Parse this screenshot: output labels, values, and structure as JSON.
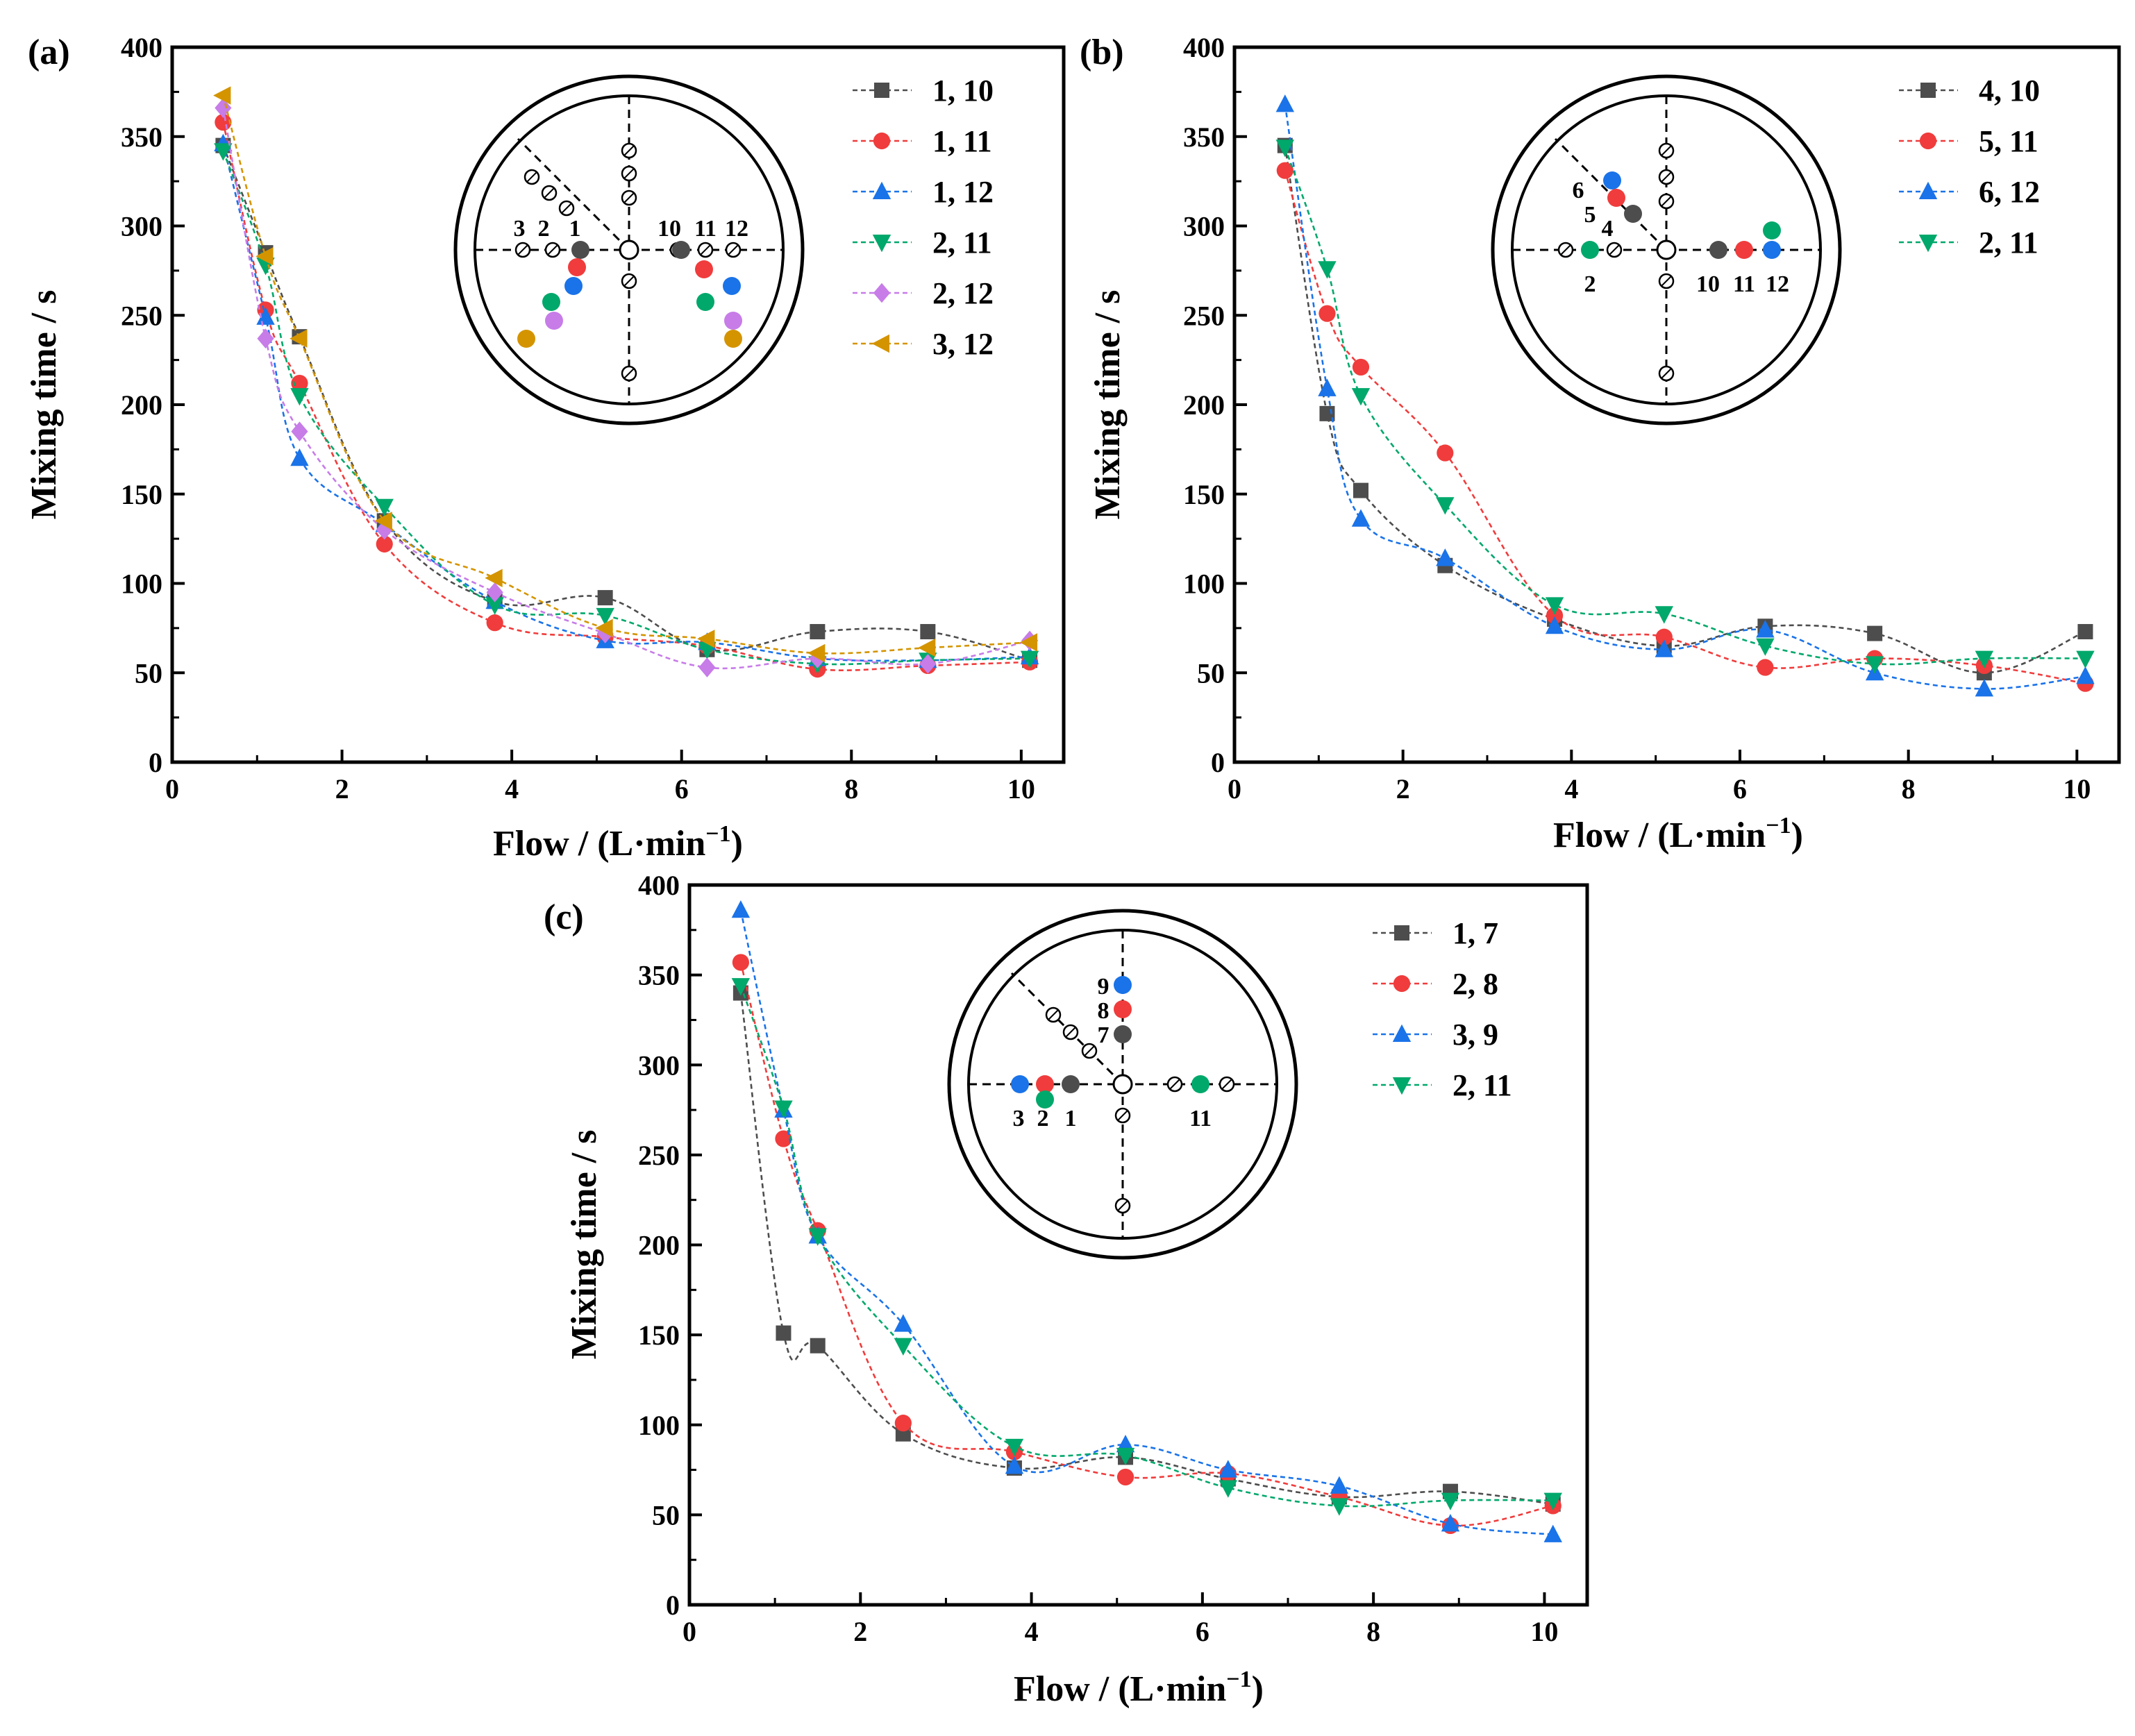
{
  "colors": {
    "black": "#4d4d4d",
    "red": "#f03c3c",
    "blue": "#1a73e8",
    "green": "#00a86b",
    "purple": "#c77ce8",
    "orange": "#d49400"
  },
  "chart_data": [
    {
      "id": "a",
      "type": "line",
      "panel_label": "(a)",
      "xlabel": "Flow / (L·min",
      "xlabel_sup": "−1",
      "xlabel_close": ")",
      "ylabel": "Mixing time / s",
      "xlim": [
        0,
        10.5
      ],
      "ylim": [
        0,
        400
      ],
      "xticks": [
        0,
        2,
        4,
        6,
        8,
        10
      ],
      "yticks": [
        0,
        50,
        100,
        150,
        200,
        250,
        300,
        350,
        400
      ],
      "x": [
        0.6,
        1.1,
        1.5,
        2.5,
        3.8,
        5.1,
        6.3,
        7.6,
        8.9,
        10.1
      ],
      "series": [
        {
          "name": "1, 10",
          "color": "black",
          "marker": "square",
          "values": [
            345,
            285,
            238,
            135,
            90,
            92,
            63,
            73,
            73,
            57
          ]
        },
        {
          "name": "1, 11",
          "color": "red",
          "marker": "circle",
          "values": [
            358,
            253,
            212,
            122,
            78,
            70,
            65,
            52,
            54,
            56
          ]
        },
        {
          "name": "1, 12",
          "color": "blue",
          "marker": "triangle-up",
          "values": [
            346,
            249,
            170,
            133,
            90,
            68,
            67,
            58,
            57,
            59
          ]
        },
        {
          "name": "2, 11",
          "color": "green",
          "marker": "triangle-down",
          "values": [
            342,
            278,
            205,
            143,
            88,
            82,
            63,
            55,
            57,
            58
          ]
        },
        {
          "name": "2, 12",
          "color": "purple",
          "marker": "diamond",
          "values": [
            366,
            237,
            185,
            130,
            95,
            72,
            53,
            58,
            55,
            68
          ]
        },
        {
          "name": "3, 12",
          "color": "orange",
          "marker": "triangle-left",
          "values": [
            373,
            283,
            237,
            135,
            103,
            75,
            69,
            61,
            64,
            67
          ]
        }
      ],
      "legend_position": "top-right",
      "inset": {
        "labels": [
          "3",
          "2",
          "1",
          "10",
          "11",
          "12"
        ]
      }
    },
    {
      "id": "b",
      "type": "line",
      "panel_label": "(b)",
      "xlabel": "Flow / (L·min",
      "xlabel_sup": "−1",
      "xlabel_close": ")",
      "ylabel": "Mixing time / s",
      "xlim": [
        0,
        10.5
      ],
      "ylim": [
        0,
        400
      ],
      "xticks": [
        0,
        2,
        4,
        6,
        8,
        10
      ],
      "yticks": [
        0,
        50,
        100,
        150,
        200,
        250,
        300,
        350,
        400
      ],
      "x": [
        0.6,
        1.1,
        1.5,
        2.5,
        3.8,
        5.1,
        6.3,
        7.6,
        8.9,
        10.1
      ],
      "series": [
        {
          "name": "4, 10",
          "color": "black",
          "marker": "square",
          "values": [
            345,
            195,
            152,
            110,
            80,
            65,
            76,
            72,
            50,
            73
          ]
        },
        {
          "name": "5, 11",
          "color": "red",
          "marker": "circle",
          "values": [
            331,
            251,
            221,
            173,
            82,
            70,
            53,
            58,
            54,
            44
          ]
        },
        {
          "name": "6, 12",
          "color": "blue",
          "marker": "triangle-up",
          "values": [
            368,
            209,
            136,
            114,
            76,
            63,
            74,
            50,
            41,
            48
          ]
        },
        {
          "name": "2, 11",
          "color": "green",
          "marker": "triangle-down",
          "values": [
            344,
            276,
            205,
            144,
            88,
            83,
            65,
            55,
            58,
            58
          ]
        }
      ],
      "legend_position": "top-right",
      "inset": {
        "labels": [
          "6",
          "5",
          "4",
          "2",
          "10",
          "11",
          "12"
        ]
      }
    },
    {
      "id": "c",
      "type": "line",
      "panel_label": "(c)",
      "xlabel": "Flow / (L·min",
      "xlabel_sup": "−1",
      "xlabel_close": ")",
      "ylabel": "Mixing time / s",
      "xlim": [
        0,
        10.5
      ],
      "ylim": [
        0,
        400
      ],
      "xticks": [
        0,
        2,
        4,
        6,
        8,
        10
      ],
      "yticks": [
        0,
        50,
        100,
        150,
        200,
        250,
        300,
        350,
        400
      ],
      "x": [
        0.6,
        1.1,
        1.5,
        2.5,
        3.8,
        5.1,
        6.3,
        7.6,
        8.9,
        10.1
      ],
      "series": [
        {
          "name": "1, 7",
          "color": "black",
          "marker": "square",
          "values": [
            340,
            151,
            144,
            95,
            76,
            82,
            70,
            60,
            63,
            56
          ]
        },
        {
          "name": "2, 8",
          "color": "red",
          "marker": "circle",
          "values": [
            357,
            259,
            208,
            101,
            85,
            71,
            73,
            60,
            44,
            55
          ]
        },
        {
          "name": "3, 9",
          "color": "blue",
          "marker": "triangle-up",
          "values": [
            386,
            275,
            205,
            156,
            77,
            89,
            75,
            66,
            45,
            39
          ]
        },
        {
          "name": "2, 11",
          "color": "green",
          "marker": "triangle-down",
          "values": [
            344,
            276,
            205,
            144,
            88,
            83,
            65,
            55,
            58,
            58
          ]
        }
      ],
      "legend_position": "top-right",
      "inset": {
        "labels": [
          "9",
          "8",
          "7",
          "3",
          "2",
          "1",
          "11"
        ]
      }
    }
  ]
}
